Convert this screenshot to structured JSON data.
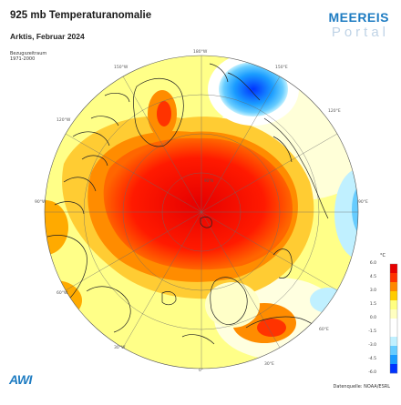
{
  "header": {
    "title": "925 mb Temperaturanomalie",
    "subtitle": "Arktis, Februar 2024",
    "reference_label": "Bezugszeitraum",
    "reference_period": "1971-2000"
  },
  "brand": {
    "name": "MEEREIS",
    "sub": "Portal"
  },
  "footer": {
    "logo_text": "AWI",
    "source": "Datenquelle: NOAA/ESRL"
  },
  "legend": {
    "unit": "°C",
    "ticks": [
      "6.0",
      "4.5",
      "3.0",
      "1.5",
      "0.0",
      "-1.5",
      "-3.0",
      "-4.5",
      "-6.0"
    ],
    "colors": [
      "#e60000",
      "#ff3300",
      "#ff8800",
      "#ffcc00",
      "#ffff80",
      "#ffffc0",
      "#ffffff",
      "#ffffff",
      "#c0f0ff",
      "#66ccff",
      "#1a9cff",
      "#0033ff"
    ]
  },
  "map": {
    "projection": "polar-stereographic-north",
    "center_label": "90°N",
    "lon_labels": [
      "180°W",
      "150°E",
      "120°E",
      "90°E",
      "60°E",
      "30°E",
      "0°",
      "30°W",
      "60°W",
      "90°W",
      "120°W",
      "150°W"
    ],
    "anomaly_regions": [
      {
        "name": "central-arctic-warm",
        "level": "strong-positive"
      },
      {
        "name": "greenland-warm",
        "level": "positive"
      },
      {
        "name": "pacific-cold",
        "level": "strong-negative"
      },
      {
        "name": "east-siberia-cold",
        "level": "slight-negative"
      }
    ]
  }
}
